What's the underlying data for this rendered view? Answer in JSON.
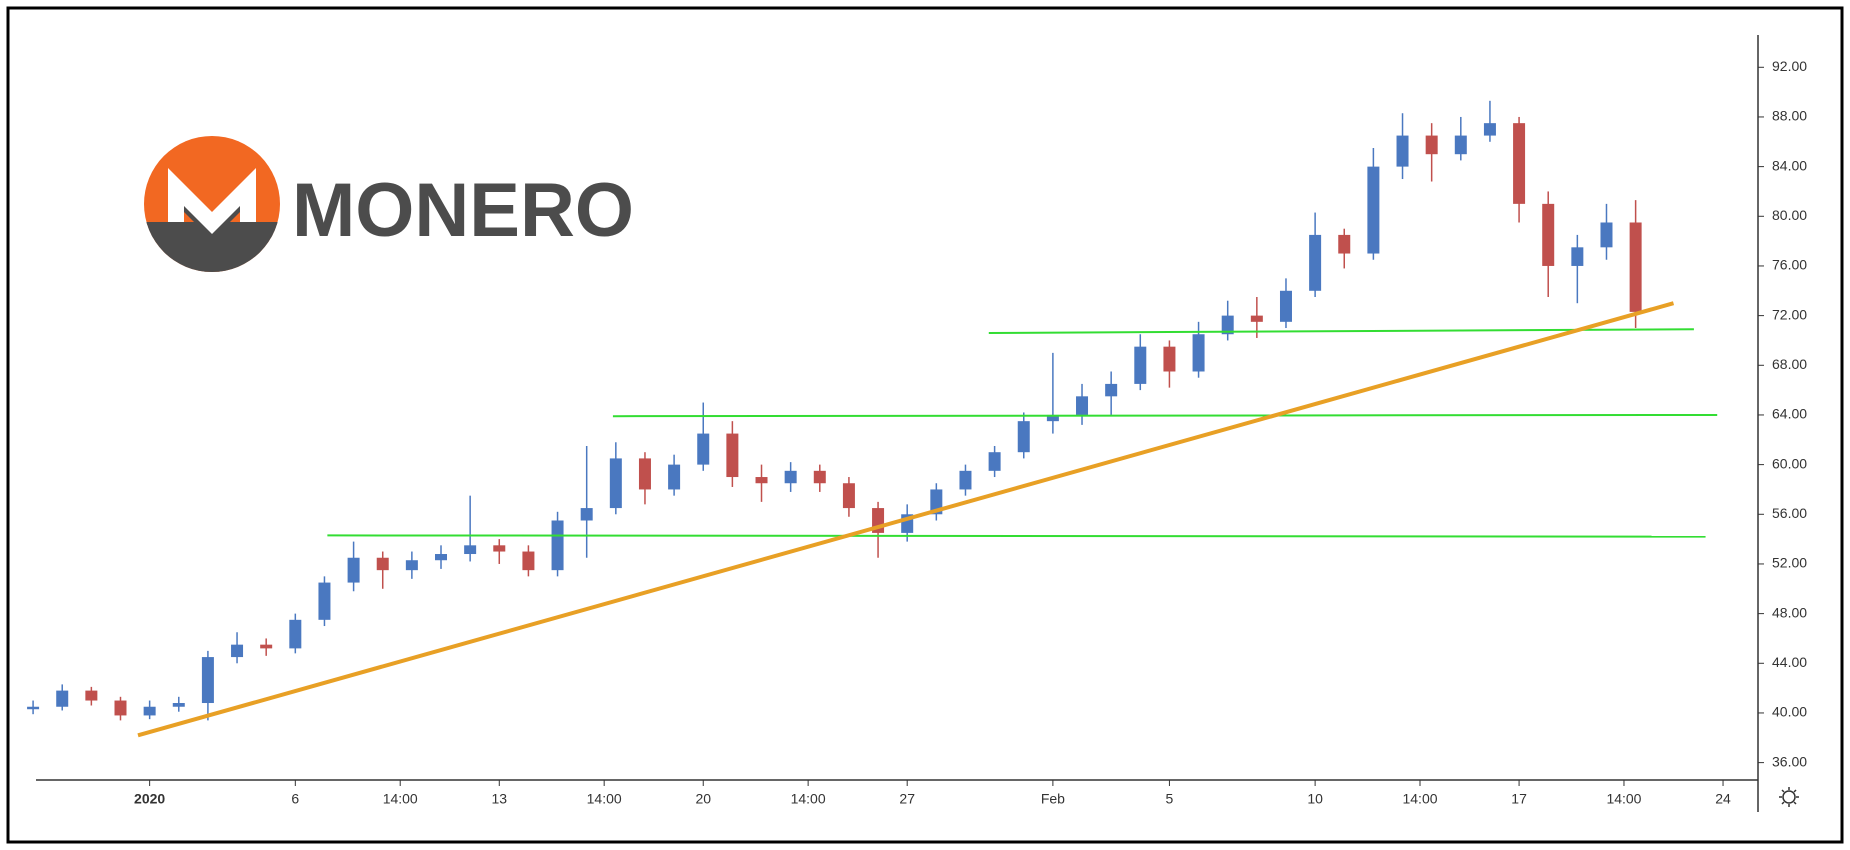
{
  "brand": "MONERO",
  "chart_data": {
    "type": "candlestick",
    "x": [
      -4,
      -3,
      -2,
      -1,
      0,
      1,
      2,
      3,
      4,
      5,
      6,
      7,
      8,
      9,
      10,
      11,
      12,
      13,
      14,
      15,
      16,
      17,
      18,
      19,
      20,
      21,
      22,
      23,
      24,
      25,
      26,
      27,
      28,
      29,
      30,
      31,
      32,
      33,
      34,
      35,
      36,
      37,
      38,
      39,
      40,
      41,
      42,
      43,
      44,
      45,
      46,
      47,
      48,
      49,
      50,
      51
    ],
    "open": [
      40.3,
      40.5,
      41.8,
      41.0,
      39.8,
      40.5,
      40.8,
      44.5,
      45.5,
      45.2,
      47.5,
      50.5,
      52.5,
      51.5,
      52.3,
      52.8,
      53.5,
      53.0,
      51.5,
      55.5,
      56.5,
      60.5,
      58.0,
      60.0,
      62.5,
      59.0,
      58.5,
      59.5,
      58.5,
      56.5,
      54.5,
      56.0,
      58.0,
      59.5,
      61.0,
      63.5,
      64.0,
      65.5,
      66.5,
      69.5,
      67.5,
      70.5,
      72.0,
      71.5,
      74.0,
      78.5,
      77.0,
      84.0,
      86.5,
      85.0,
      86.5,
      87.5,
      81.0,
      76.0,
      77.5,
      79.5
    ],
    "high": [
      41.0,
      42.3,
      42.1,
      41.3,
      41.0,
      41.3,
      45.0,
      46.5,
      46.0,
      48.0,
      51.0,
      53.8,
      53.0,
      53.0,
      53.5,
      57.5,
      54.0,
      53.5,
      56.2,
      61.5,
      61.8,
      61.0,
      60.8,
      65.0,
      63.5,
      60.0,
      60.2,
      60.0,
      59.0,
      57.0,
      56.8,
      58.5,
      60.0,
      61.5,
      64.2,
      69.0,
      66.5,
      67.5,
      70.5,
      70.0,
      71.5,
      73.2,
      73.5,
      75.0,
      80.3,
      79.0,
      85.5,
      88.3,
      87.5,
      88.0,
      89.3,
      88.0,
      82.0,
      78.5,
      81.0,
      81.3
    ],
    "low": [
      39.9,
      40.2,
      40.6,
      39.4,
      39.5,
      40.1,
      39.4,
      44.0,
      44.6,
      44.8,
      47.0,
      49.8,
      50.0,
      50.8,
      51.6,
      52.2,
      52.0,
      51.0,
      51.0,
      52.5,
      56.0,
      56.8,
      57.5,
      59.5,
      58.2,
      57.0,
      57.8,
      57.8,
      55.8,
      52.5,
      53.8,
      55.5,
      57.5,
      59.0,
      60.5,
      62.5,
      63.2,
      64.0,
      66.0,
      66.2,
      67.0,
      70.0,
      70.2,
      71.0,
      73.5,
      75.8,
      76.5,
      83.0,
      82.8,
      84.5,
      86.0,
      79.5,
      73.5,
      73.0,
      76.5,
      71.0
    ],
    "close": [
      40.5,
      41.8,
      41.0,
      39.8,
      40.5,
      40.8,
      44.5,
      45.5,
      45.2,
      47.5,
      50.5,
      52.5,
      51.5,
      52.3,
      52.8,
      53.5,
      53.0,
      51.5,
      55.5,
      56.5,
      60.5,
      58.0,
      60.0,
      62.5,
      59.0,
      58.5,
      59.5,
      58.5,
      56.5,
      54.5,
      56.0,
      58.0,
      59.5,
      61.0,
      63.5,
      64.0,
      65.5,
      66.5,
      69.5,
      67.5,
      70.5,
      72.0,
      71.5,
      74.0,
      78.5,
      77.0,
      84.0,
      86.5,
      85.0,
      86.5,
      87.5,
      81.0,
      76.0,
      77.5,
      79.5,
      72.3
    ],
    "up_color": "#4a78c0",
    "down_color": "#c0504d",
    "xlim": [
      -3.9,
      55.2
    ],
    "xticks": [
      {
        "value": 0,
        "label": "2020"
      },
      {
        "value": 5,
        "label": "6"
      },
      {
        "value": 8.6,
        "label": "14:00"
      },
      {
        "value": 12,
        "label": "13"
      },
      {
        "value": 15.6,
        "label": "14:00"
      },
      {
        "value": 19,
        "label": "20"
      },
      {
        "value": 22.6,
        "label": "14:00"
      },
      {
        "value": 26,
        "label": "27"
      },
      {
        "value": 31,
        "label": "Feb"
      },
      {
        "value": 35,
        "label": "5"
      },
      {
        "value": 40,
        "label": "10"
      },
      {
        "value": 43.6,
        "label": "14:00"
      },
      {
        "value": 47,
        "label": "17"
      },
      {
        "value": 50.6,
        "label": "14:00"
      },
      {
        "value": 54,
        "label": "24"
      }
    ],
    "ylim": [
      34.6,
      94.6
    ],
    "yticks": [
      {
        "value": 36,
        "label": "36.00"
      },
      {
        "value": 40,
        "label": "40.00"
      },
      {
        "value": 44,
        "label": "44.00"
      },
      {
        "value": 48,
        "label": "48.00"
      },
      {
        "value": 52,
        "label": "52.00"
      },
      {
        "value": 56,
        "label": "56.00"
      },
      {
        "value": 60,
        "label": "60.00"
      },
      {
        "value": 64,
        "label": "64.00"
      },
      {
        "value": 68,
        "label": "68.00"
      },
      {
        "value": 72,
        "label": "72.00"
      },
      {
        "value": 76,
        "label": "76.00"
      },
      {
        "value": 80,
        "label": "80.00"
      },
      {
        "value": 84,
        "label": "84.00"
      },
      {
        "value": 88,
        "label": "88.00"
      },
      {
        "value": 92,
        "label": "92.00"
      }
    ],
    "lines": [
      {
        "x": [
          6.1,
          53.4
        ],
        "y": [
          54.3,
          54.2
        ],
        "color": "#33dd33"
      },
      {
        "x": [
          15.9,
          53.8
        ],
        "y": [
          63.9,
          64.0
        ],
        "color": "#33dd33"
      },
      {
        "x": [
          28.8,
          53.0
        ],
        "y": [
          70.6,
          70.9
        ],
        "color": "#33dd33"
      },
      {
        "x": [
          -0.4,
          52.3
        ],
        "y": [
          38.2,
          73.0
        ],
        "color": "#e8a025"
      }
    ]
  }
}
